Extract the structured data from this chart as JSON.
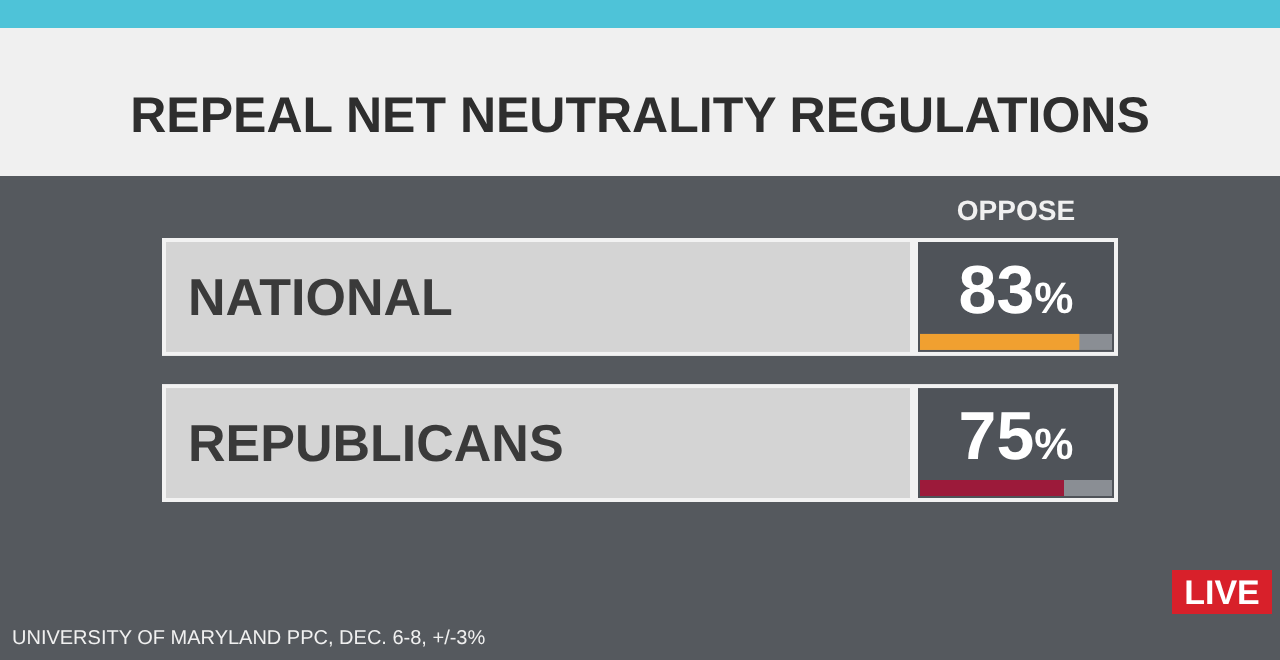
{
  "chart_data": {
    "type": "bar",
    "orientation": "horizontal",
    "title": "REPEAL NET NEUTRALITY REGULATIONS",
    "xlabel": "OPPOSE",
    "categories": [
      "NATIONAL",
      "REPUBLICANS"
    ],
    "values": [
      83,
      75
    ],
    "colors": [
      "#f0a030",
      "#9c1a3a"
    ],
    "value_labels": [
      "83%",
      "75%"
    ],
    "xlim": [
      0,
      100
    ],
    "annotations": [
      "UNIVERSITY OF MARYLAND PPC, DEC. 6-8, +/-3%",
      "LIVE"
    ]
  }
}
